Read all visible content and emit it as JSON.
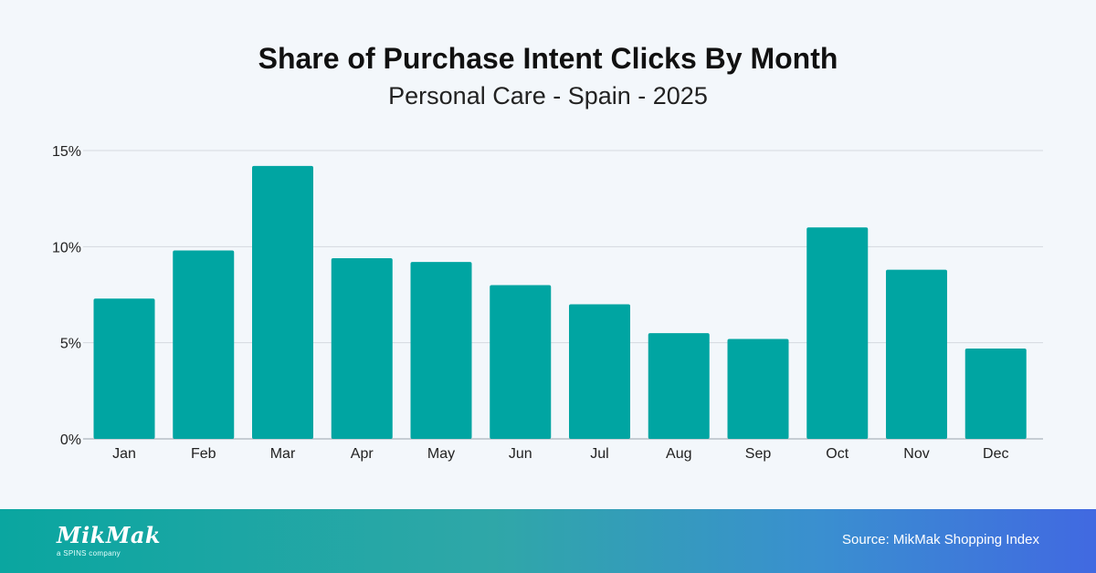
{
  "chart_data": {
    "type": "bar",
    "title": "Share of Purchase Intent Clicks By Month",
    "subtitle": "Personal Care - Spain - 2025",
    "categories": [
      "Jan",
      "Feb",
      "Mar",
      "Apr",
      "May",
      "Jun",
      "Jul",
      "Aug",
      "Sep",
      "Oct",
      "Nov",
      "Dec"
    ],
    "values": [
      7.3,
      9.8,
      14.2,
      9.4,
      9.2,
      8.0,
      7.0,
      5.5,
      5.2,
      11.0,
      8.8,
      4.7
    ],
    "ylim": [
      0,
      15
    ],
    "yticks": [
      0,
      5,
      10,
      15
    ],
    "ytick_labels": [
      "0%",
      "5%",
      "10%",
      "15%"
    ],
    "xlabel": "",
    "ylabel": "",
    "grid": true,
    "bar_color": "#00a5a2"
  },
  "footer": {
    "logo_text": "MikMak",
    "logo_tagline": "a SPINS company",
    "source": "Source: MikMak Shopping Index"
  }
}
